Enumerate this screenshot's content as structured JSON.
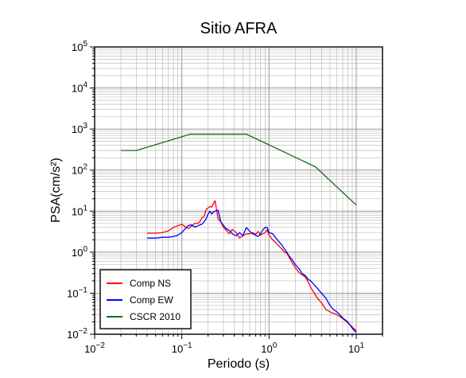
{
  "chart_data": {
    "type": "line",
    "title": "Sitio AFRA",
    "xlabel": "Periodo (s)",
    "ylabel": "PSA(cm/s²)",
    "xscale": "log",
    "yscale": "log",
    "xlim": [
      0.01,
      20
    ],
    "ylim": [
      0.01,
      100000
    ],
    "grid": true,
    "legend_placement": "bottom-left",
    "x_tick_labels": [
      {
        "value": 0.01,
        "base": "10",
        "exp": "−2"
      },
      {
        "value": 0.1,
        "base": "10",
        "exp": "−1"
      },
      {
        "value": 1,
        "base": "10",
        "exp": "0"
      },
      {
        "value": 10,
        "base": "10",
        "exp": "1"
      }
    ],
    "y_tick_labels": [
      {
        "value": 0.01,
        "base": "10",
        "exp": "−2"
      },
      {
        "value": 0.1,
        "base": "10",
        "exp": "−1"
      },
      {
        "value": 1,
        "base": "10",
        "exp": "0"
      },
      {
        "value": 10,
        "base": "10",
        "exp": "1"
      },
      {
        "value": 100,
        "base": "10",
        "exp": "2"
      },
      {
        "value": 1000,
        "base": "10",
        "exp": "3"
      },
      {
        "value": 10000,
        "base": "10",
        "exp": "4"
      },
      {
        "value": 100000,
        "base": "10",
        "exp": "5"
      }
    ],
    "series": [
      {
        "name": "Comp NS",
        "color": "#ff0000",
        "x": [
          0.04,
          0.05,
          0.06,
          0.07,
          0.08,
          0.09,
          0.1,
          0.11,
          0.12,
          0.13,
          0.14,
          0.15,
          0.16,
          0.17,
          0.18,
          0.19,
          0.2,
          0.21,
          0.22,
          0.23,
          0.24,
          0.26,
          0.28,
          0.3,
          0.32,
          0.35,
          0.38,
          0.42,
          0.46,
          0.5,
          0.55,
          0.6,
          0.65,
          0.7,
          0.75,
          0.8,
          0.85,
          0.9,
          0.95,
          1.0,
          1.1,
          1.2,
          1.3,
          1.4,
          1.5,
          1.6,
          1.7,
          1.8,
          2.0,
          2.2,
          2.4,
          2.6,
          2.8,
          3.0,
          3.3,
          3.6,
          4.0,
          4.5,
          5.0,
          5.5,
          6.0,
          7.0,
          8.0,
          9.0,
          10.0
        ],
        "values": [
          2.9,
          2.9,
          3.0,
          3.3,
          4.0,
          4.4,
          4.8,
          4.1,
          3.8,
          4.4,
          5.0,
          5.0,
          5.4,
          6.8,
          7.5,
          11.0,
          12.0,
          13.0,
          12.5,
          15.0,
          18.0,
          6.5,
          5.5,
          4.0,
          3.5,
          2.8,
          3.6,
          3.0,
          2.2,
          2.5,
          2.8,
          2.8,
          3.0,
          2.7,
          3.2,
          2.6,
          2.8,
          3.0,
          3.5,
          2.6,
          2.0,
          1.7,
          1.4,
          1.2,
          1.0,
          0.95,
          0.75,
          0.6,
          0.42,
          0.32,
          0.28,
          0.25,
          0.19,
          0.14,
          0.1,
          0.075,
          0.058,
          0.04,
          0.035,
          0.032,
          0.03,
          0.024,
          0.019,
          0.015,
          0.012
        ]
      },
      {
        "name": "Comp EW",
        "color": "#0000ff",
        "x": [
          0.04,
          0.05,
          0.06,
          0.07,
          0.08,
          0.09,
          0.1,
          0.11,
          0.12,
          0.13,
          0.14,
          0.15,
          0.16,
          0.17,
          0.18,
          0.19,
          0.2,
          0.21,
          0.22,
          0.23,
          0.24,
          0.26,
          0.28,
          0.3,
          0.32,
          0.35,
          0.38,
          0.42,
          0.46,
          0.5,
          0.55,
          0.6,
          0.65,
          0.7,
          0.75,
          0.8,
          0.85,
          0.9,
          0.95,
          1.0,
          1.1,
          1.2,
          1.3,
          1.4,
          1.5,
          1.6,
          1.7,
          1.8,
          2.0,
          2.2,
          2.4,
          2.6,
          2.8,
          3.0,
          3.3,
          3.6,
          4.0,
          4.5,
          5.0,
          5.5,
          6.0,
          7.0,
          8.0,
          9.0,
          10.0
        ],
        "values": [
          2.2,
          2.2,
          2.3,
          2.3,
          2.4,
          2.6,
          3.0,
          3.8,
          4.5,
          4.6,
          4.1,
          4.3,
          4.6,
          4.8,
          5.5,
          6.5,
          8.5,
          10.0,
          8.5,
          9.5,
          10.0,
          10.5,
          5.5,
          4.5,
          3.8,
          3.4,
          2.8,
          2.5,
          3.0,
          2.5,
          4.0,
          3.2,
          2.8,
          2.6,
          2.4,
          2.8,
          3.5,
          4.0,
          4.0,
          3.0,
          2.8,
          2.2,
          1.8,
          1.5,
          1.2,
          1.0,
          0.8,
          0.7,
          0.5,
          0.4,
          0.3,
          0.27,
          0.22,
          0.2,
          0.16,
          0.13,
          0.1,
          0.075,
          0.05,
          0.04,
          0.035,
          0.025,
          0.02,
          0.014,
          0.011
        ]
      },
      {
        "name": "CSCR 2010",
        "color": "#1a6b1a",
        "x": [
          0.02,
          0.03,
          0.125,
          0.55,
          3.4,
          10.0
        ],
        "values": [
          300,
          300,
          750,
          750,
          120,
          14
        ]
      }
    ]
  }
}
